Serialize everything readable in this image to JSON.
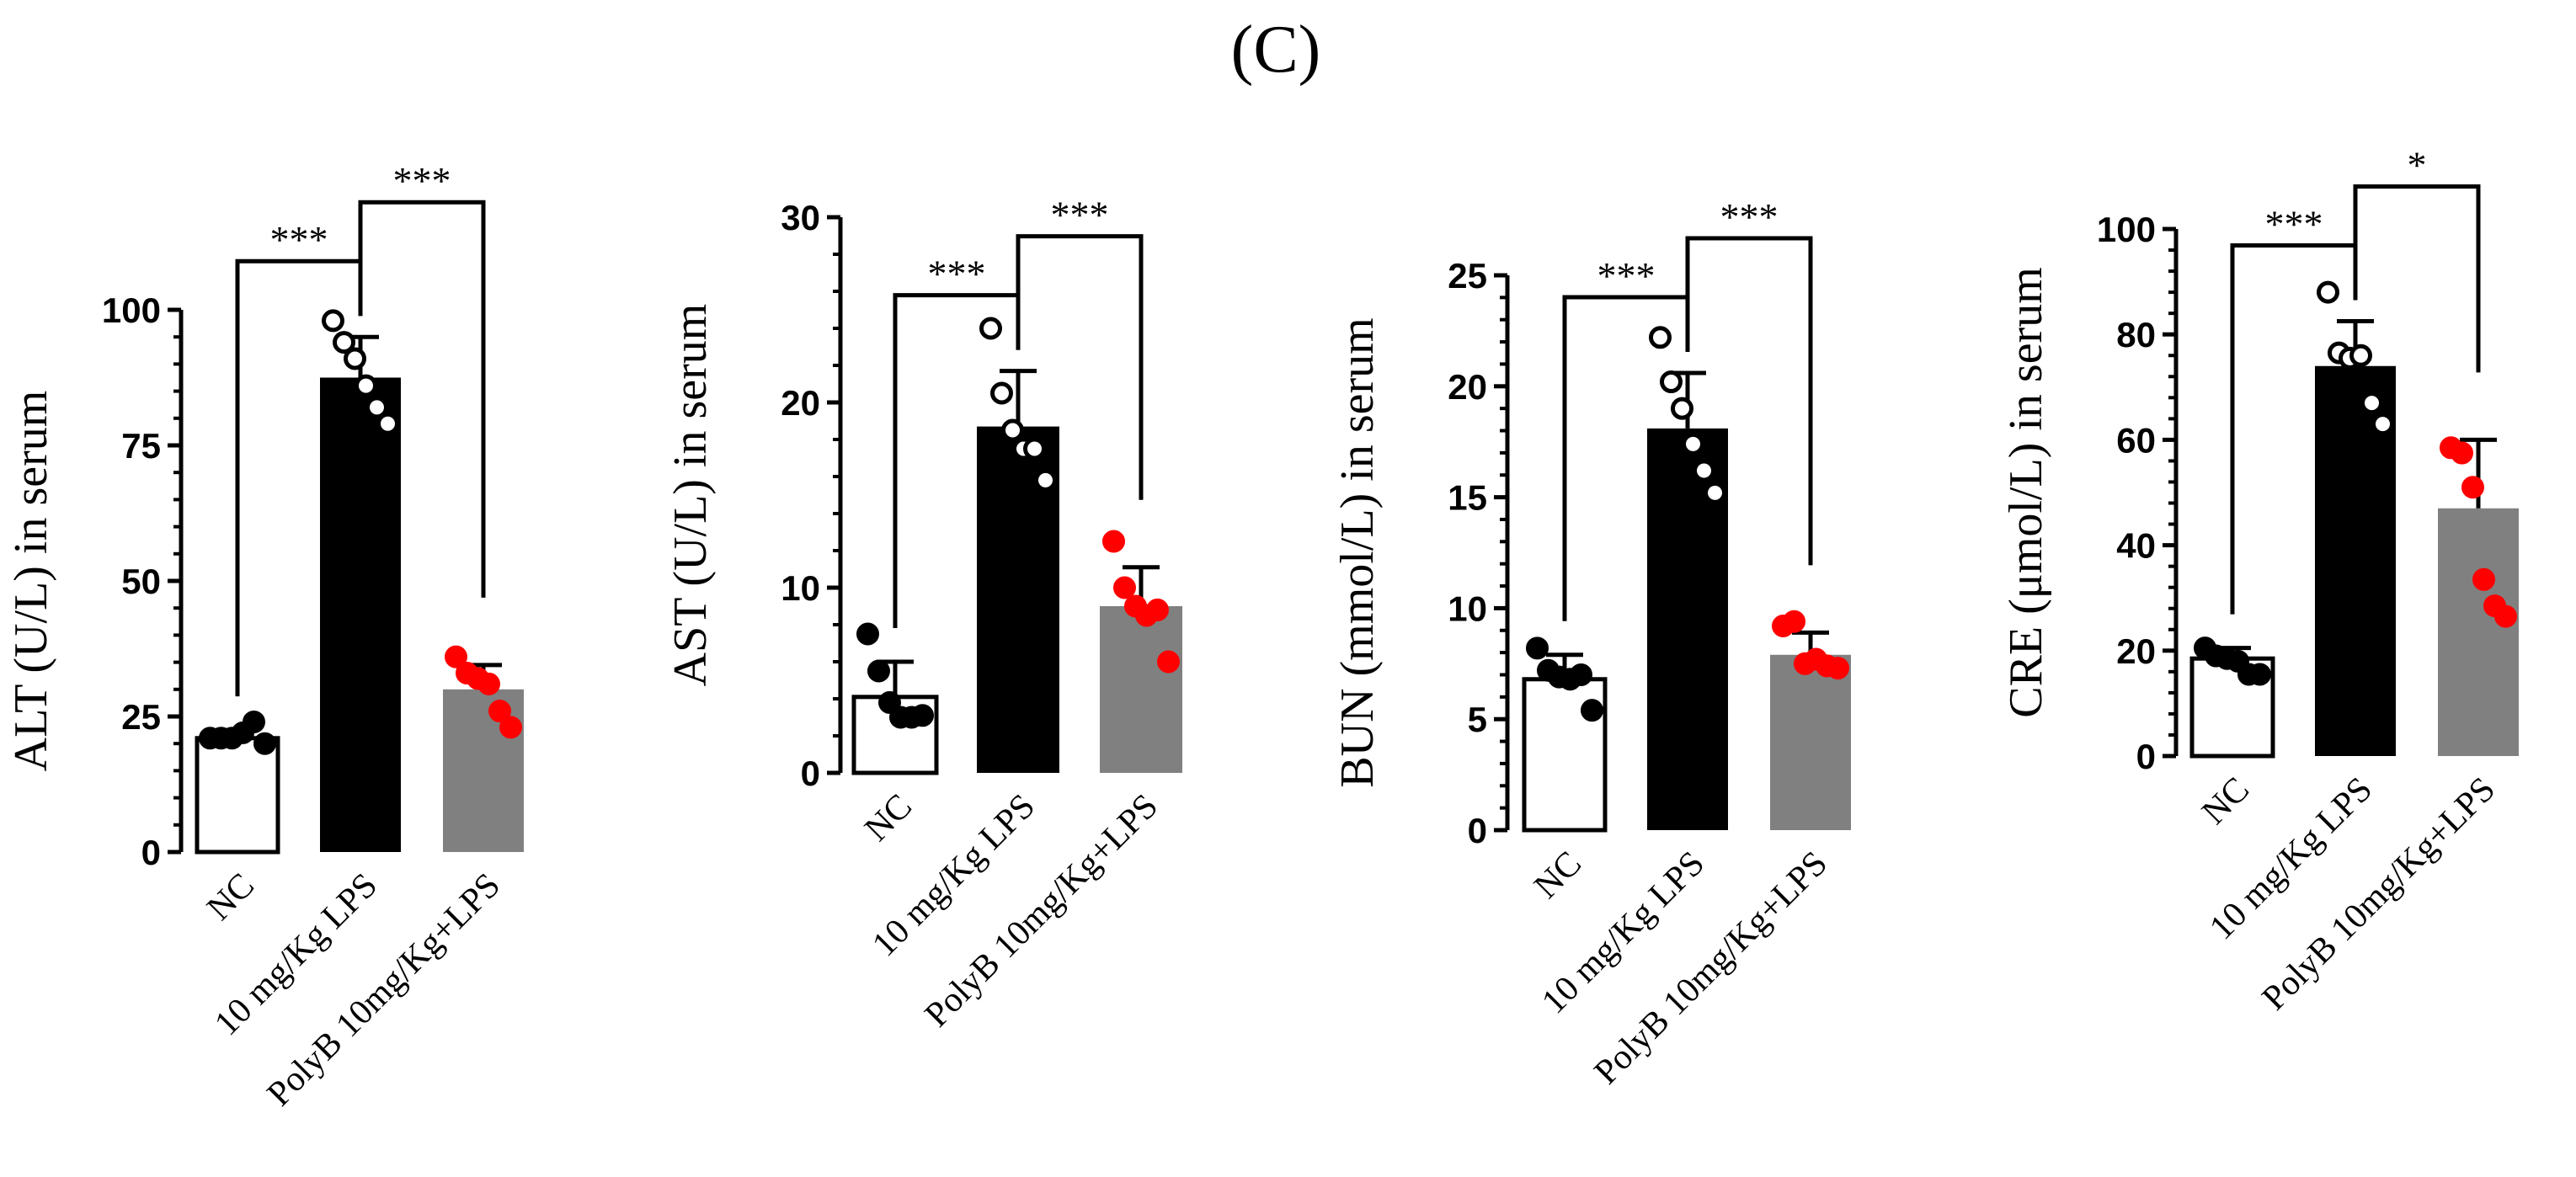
{
  "figure": {
    "panel_label": "(C)"
  },
  "chart_data": [
    {
      "type": "bar",
      "ylabel": "ALT (U/L) in serum",
      "ylim": [
        0,
        100
      ],
      "yticks": [
        "0",
        "25",
        "50",
        "75",
        "100"
      ],
      "tick_values": [
        0,
        25,
        50,
        75,
        100
      ],
      "categories": [
        "NC",
        "10 mg/Kg LPS",
        "PolyB 10mg/Kg+LPS"
      ],
      "values": [
        21,
        87.5,
        30
      ],
      "errors": [
        1.5,
        7.5,
        4.5
      ],
      "points": [
        [
          21,
          21,
          21,
          22,
          24,
          20
        ],
        [
          98,
          94,
          91,
          86,
          82,
          79
        ],
        [
          36,
          33,
          32,
          31,
          26,
          23
        ]
      ],
      "significance": [
        {
          "pair": [
            0,
            1
          ],
          "label": "***"
        },
        {
          "pair": [
            1,
            2
          ],
          "label": "***"
        }
      ]
    },
    {
      "type": "bar",
      "ylabel": "AST (U/L) in serum",
      "ylim": [
        0,
        30
      ],
      "yticks": [
        "0",
        "10",
        "20",
        "30"
      ],
      "tick_values": [
        0,
        10,
        20,
        30
      ],
      "categories": [
        "NC",
        "10 mg/Kg LPS",
        "PolyB 10mg/Kg+LPS"
      ],
      "values": [
        4.1,
        18.7,
        9
      ],
      "errors": [
        1.9,
        3,
        2.1
      ],
      "points": [
        [
          7.5,
          5.5,
          3.8,
          3,
          3,
          3.1
        ],
        [
          24,
          20.5,
          18.5,
          17.5,
          17.5,
          15.8
        ],
        [
          12.5,
          10,
          9,
          8.5,
          8.8,
          6
        ]
      ],
      "significance": [
        {
          "pair": [
            0,
            1
          ],
          "label": "***"
        },
        {
          "pair": [
            1,
            2
          ],
          "label": "***"
        }
      ]
    },
    {
      "type": "bar",
      "ylabel": "BUN (mmol/L) in serum",
      "ylim": [
        0,
        25
      ],
      "yticks": [
        "0",
        "5",
        "10",
        "15",
        "20",
        "25"
      ],
      "tick_values": [
        0,
        5,
        10,
        15,
        20,
        25
      ],
      "categories": [
        "NC",
        "10 mg/Kg LPS",
        "PolyB 10mg/Kg+LPS"
      ],
      "values": [
        6.8,
        18.1,
        7.9
      ],
      "errors": [
        1.1,
        2.5,
        1
      ],
      "points": [
        [
          8.2,
          7.2,
          6.9,
          6.8,
          7,
          5.4
        ],
        [
          22.2,
          20.2,
          19,
          17.4,
          16.2,
          15.2
        ],
        [
          9.2,
          9.4,
          7.5,
          7.7,
          7.4,
          7.3
        ]
      ],
      "significance": [
        {
          "pair": [
            0,
            1
          ],
          "label": "***"
        },
        {
          "pair": [
            1,
            2
          ],
          "label": "***"
        }
      ]
    },
    {
      "type": "bar",
      "ylabel": "CRE (μmol/L) in serum",
      "ylim": [
        0,
        100
      ],
      "yticks": [
        "0",
        "20",
        "40",
        "60",
        "80",
        "100"
      ],
      "tick_values": [
        0,
        20,
        40,
        60,
        80,
        100
      ],
      "categories": [
        "NC",
        "10 mg/Kg LPS",
        "PolyB 10mg/Kg+LPS"
      ],
      "values": [
        18.5,
        74,
        47
      ],
      "errors": [
        2,
        8.5,
        13
      ],
      "points": [
        [
          20.5,
          19,
          18.5,
          18,
          15.5,
          15.5
        ],
        [
          88,
          76.5,
          75.5,
          76,
          67,
          63
        ],
        [
          58.5,
          57.5,
          51,
          33.5,
          28.5,
          26.5
        ]
      ],
      "significance": [
        {
          "pair": [
            0,
            1
          ],
          "label": "***"
        },
        {
          "pair": [
            1,
            2
          ],
          "label": "*"
        }
      ]
    }
  ],
  "colors": {
    "bar_fills": [
      "#ffffff",
      "#000000",
      "#808080"
    ],
    "point_fills": [
      "#000000",
      "#ffffff",
      "#ff0000"
    ],
    "point_strokes": [
      "#000000",
      "#000000",
      "#ff0000"
    ],
    "axis": "#000000"
  }
}
